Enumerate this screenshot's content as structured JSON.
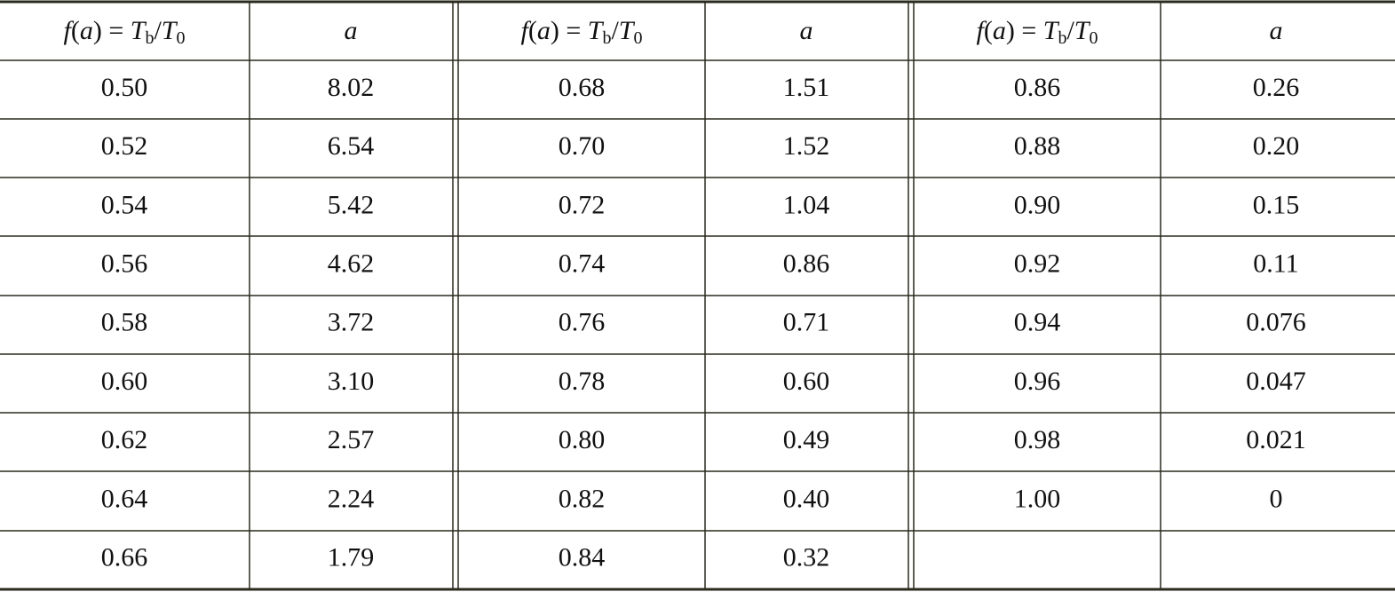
{
  "header": {
    "columns": [
      [
        {
          "text": "f",
          "style": "italic"
        },
        {
          "text": "(",
          "style": "normal"
        },
        {
          "text": "a",
          "style": "italic"
        },
        {
          "text": ") = ",
          "style": "normal"
        },
        {
          "text": "T",
          "style": "italic"
        },
        {
          "text": "b",
          "style": "sub"
        },
        {
          "text": "/",
          "style": "normal"
        },
        {
          "text": "T",
          "style": "italic"
        },
        {
          "text": "0",
          "style": "sub"
        }
      ],
      [
        {
          "text": "a",
          "style": "italic"
        }
      ],
      [
        {
          "text": "f",
          "style": "italic"
        },
        {
          "text": "(",
          "style": "normal"
        },
        {
          "text": "a",
          "style": "italic"
        },
        {
          "text": ") = ",
          "style": "normal"
        },
        {
          "text": "T",
          "style": "italic"
        },
        {
          "text": "b",
          "style": "sub"
        },
        {
          "text": "/",
          "style": "normal"
        },
        {
          "text": "T",
          "style": "italic"
        },
        {
          "text": "0",
          "style": "sub"
        }
      ],
      [
        {
          "text": "a",
          "style": "italic"
        }
      ],
      [
        {
          "text": "f",
          "style": "italic"
        },
        {
          "text": "(",
          "style": "normal"
        },
        {
          "text": "a",
          "style": "italic"
        },
        {
          "text": ") = ",
          "style": "normal"
        },
        {
          "text": "T",
          "style": "italic"
        },
        {
          "text": "b",
          "style": "sub"
        },
        {
          "text": "/",
          "style": "normal"
        },
        {
          "text": "T",
          "style": "italic"
        },
        {
          "text": "0",
          "style": "sub"
        }
      ],
      [
        {
          "text": "a",
          "style": "italic"
        }
      ]
    ]
  },
  "table": {
    "rows": [
      [
        "0.50",
        "8.02",
        "0.68",
        "1.51",
        "0.86",
        "0.26"
      ],
      [
        "0.52",
        "6.54",
        "0.70",
        "1.52",
        "0.88",
        "0.20"
      ],
      [
        "0.54",
        "5.42",
        "0.72",
        "1.04",
        "0.90",
        "0.15"
      ],
      [
        "0.56",
        "4.62",
        "0.74",
        "0.86",
        "0.92",
        "0.11"
      ],
      [
        "0.58",
        "3.72",
        "0.76",
        "0.71",
        "0.94",
        "0.076"
      ],
      [
        "0.60",
        "3.10",
        "0.78",
        "0.60",
        "0.96",
        "0.047"
      ],
      [
        "0.62",
        "2.57",
        "0.80",
        "0.49",
        "0.98",
        "0.021"
      ],
      [
        "0.64",
        "2.24",
        "0.82",
        "0.40",
        "1.00",
        "0"
      ],
      [
        "0.66",
        "1.79",
        "0.84",
        "0.32",
        null,
        null
      ]
    ]
  }
}
